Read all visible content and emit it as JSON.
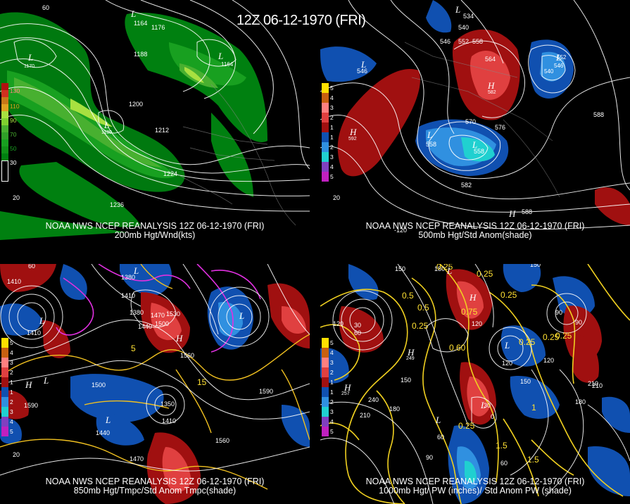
{
  "header": {
    "title": "12Z 06-12-1970 (FRI)"
  },
  "panels": [
    {
      "id": "p200",
      "caption_line1": "NOAA NWS NCEP REANALYSIS 12Z 06-12-1970 (FRI)",
      "caption_line2": "200mb Hgt/Wnd(kts)",
      "legend": [
        "130",
        "110",
        "90",
        "70",
        "50",
        "30"
      ],
      "legend_colors": [
        "#b01010",
        "#c87818",
        "#a8e040",
        "#48b030",
        "#18a020",
        "#008010"
      ],
      "contour_labels": [
        "1164",
        "1176",
        "1188",
        "1200",
        "1212",
        "1224",
        "1236",
        "1170",
        "1164",
        "1180"
      ],
      "symbols": [
        "L",
        "L",
        "L",
        "L"
      ],
      "lat_labels": [
        "20",
        "60"
      ]
    },
    {
      "id": "p500",
      "caption_line1": "NOAA NWS NCEP REANALYSIS 12Z 06-12-1970 (FRI)",
      "caption_line2": "500mb Hgt/Std Anom(shade)",
      "legend": [
        "5",
        "4",
        "3",
        "2",
        "1",
        "1",
        "2",
        "3",
        "4",
        "5"
      ],
      "legend_colors": [
        "#ffe000",
        "#c86010",
        "#ff8080",
        "#e04040",
        "#a01010",
        "#1050b0",
        "#3090e0",
        "#20d0d0",
        "#8040c0",
        "#c020c0"
      ],
      "contour_labels": [
        "534",
        "540",
        "546",
        "552",
        "558",
        "564",
        "570",
        "576",
        "582",
        "588",
        "546",
        "588",
        "540",
        "546",
        "552"
      ],
      "symbols": [
        "L",
        "L",
        "H",
        "H",
        "L",
        "L",
        "H",
        "L"
      ],
      "sym_values": [
        "592",
        "582",
        "558",
        "558"
      ],
      "lat_labels": [
        "20",
        "-120"
      ]
    },
    {
      "id": "p850",
      "caption_line1": "NOAA NWS NCEP REANALYSIS 12Z 06-12-1970 (FRI)",
      "caption_line2": "850mb Hgt/Tmpc/Std Anom Tmpc(shade)",
      "legend": [
        "5",
        "4",
        "3",
        "2",
        "1",
        "1",
        "2",
        "3",
        "4",
        "5"
      ],
      "legend_colors": [
        "#ffe000",
        "#c86010",
        "#ff8080",
        "#e04040",
        "#a01010",
        "#1050b0",
        "#3090e0",
        "#20d0d0",
        "#8040c0",
        "#c020c0"
      ],
      "contour_labels": [
        "1410",
        "1380",
        "1410",
        "1380",
        "1440",
        "1470",
        "1530",
        "1500",
        "1560",
        "1590",
        "1500",
        "1350",
        "1410",
        "1590",
        "1440",
        "1560",
        "1470",
        "1410"
      ],
      "symbols": [
        "L",
        "L",
        "L",
        "H",
        "L",
        "H",
        "L"
      ],
      "lat_labels": [
        "20",
        "60"
      ],
      "temp_labels": [
        "5",
        "15"
      ]
    },
    {
      "id": "p1000",
      "caption_line1": "NOAA NWS NCEP REANALYSIS 12Z 06-12-1970 (FRI)",
      "caption_line2": "1000mb Hgt/ PW (inches)/ Std Anom PW (shade)",
      "legend": [
        "5",
        "4",
        "3",
        "2",
        "1",
        "1",
        "2",
        "3",
        "4",
        "5"
      ],
      "legend_colors": [
        "#ffe000",
        "#c86010",
        "#ff8080",
        "#e04040",
        "#a01010",
        "#1050b0",
        "#3090e0",
        "#20d0d0",
        "#8040c0",
        "#c020c0"
      ],
      "contour_labels": [
        "150",
        "120",
        "30",
        "60",
        "90",
        "120",
        "150",
        "180",
        "210",
        "240",
        "210",
        "180",
        "150",
        "120",
        "90",
        "60",
        "30",
        "0",
        "60",
        "90",
        "120",
        "150",
        "180",
        "210"
      ],
      "pw_labels": [
        "0.25",
        "0.25",
        "0.5",
        "0.5",
        "0.25",
        "0.25",
        "0.25",
        "0.75",
        "0.25",
        "1.5",
        "1.5",
        "0.25",
        "0.60",
        "0.25",
        "1"
      ],
      "symbols": [
        "L",
        "H",
        "H",
        "L",
        "L",
        "L",
        "H"
      ],
      "sym_values": [
        "257",
        "249"
      ]
    }
  ]
}
